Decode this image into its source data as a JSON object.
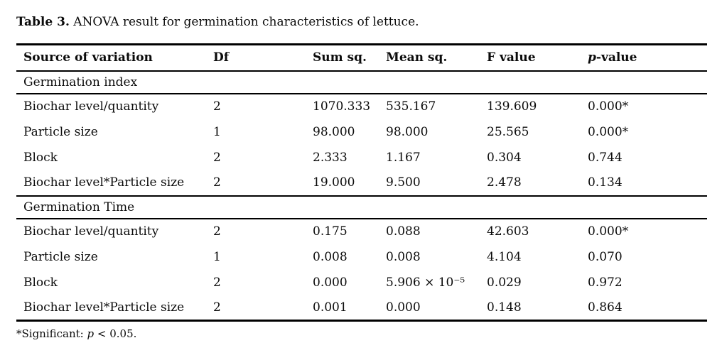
{
  "caption": {
    "label": "Table 3.",
    "text": " ANOVA result for germination characteristics of lettuce."
  },
  "table": {
    "header": {
      "source": "Source of variation",
      "df": "Df",
      "sum_sq": "Sum sq.",
      "mean_sq": "Mean sq.",
      "f_value": "F value",
      "p_value_italic": "p",
      "p_value_rest": "-value"
    },
    "sections": [
      {
        "name": "Germination index",
        "rows": [
          [
            "Biochar level/quantity",
            "2",
            "1070.333",
            "535.167",
            "139.609",
            "0.000*"
          ],
          [
            "Particle size",
            "1",
            "98.000",
            "98.000",
            "25.565",
            "0.000*"
          ],
          [
            "Block",
            "2",
            "2.333",
            "1.167",
            "0.304",
            "0.744"
          ],
          [
            "Biochar level*Particle size",
            "2",
            "19.000",
            "9.500",
            "2.478",
            "0.134"
          ]
        ]
      },
      {
        "name": "Germination Time",
        "rows": [
          [
            "Biochar level/quantity",
            "2",
            "0.175",
            "0.088",
            "42.603",
            "0.000*"
          ],
          [
            "Particle size",
            "1",
            "0.008",
            "0.008",
            "4.104",
            "0.070"
          ],
          [
            "Block",
            "2",
            "0.000",
            "5.906 × 10⁻⁵",
            "0.029",
            "0.972"
          ],
          [
            "Biochar level*Particle size",
            "2",
            "0.001",
            "0.000",
            "0.148",
            "0.864"
          ]
        ]
      }
    ]
  },
  "footnote": {
    "prefix": "*Significant: ",
    "p_italic": "p",
    "rest": " < 0.05."
  },
  "colors": {
    "text": "#0b0b0b",
    "rule": "#000000",
    "background": "#ffffff"
  }
}
